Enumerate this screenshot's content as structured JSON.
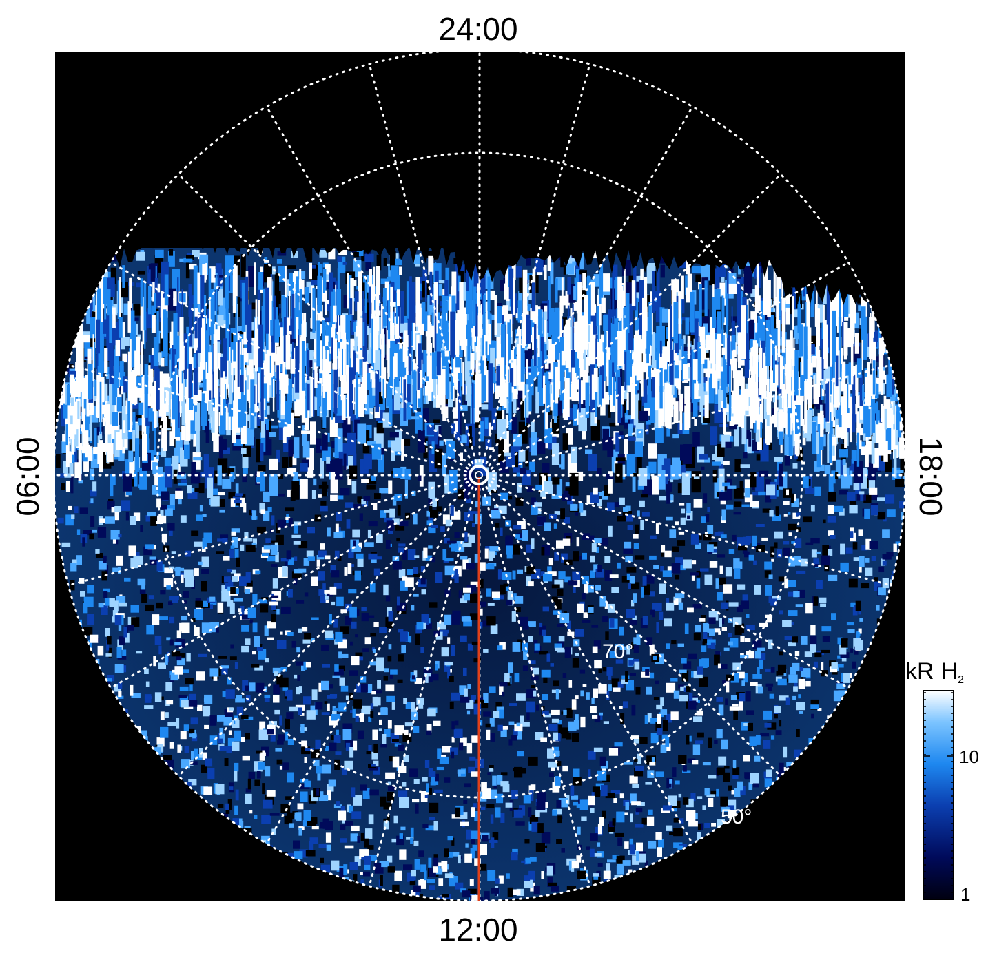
{
  "image": {
    "type": "polar auroral projection",
    "local_time_labels": {
      "top": "24:00",
      "bottom": "12:00",
      "left": "06:00",
      "right": "18:00"
    },
    "latitude_labels": [
      "70°",
      "50°"
    ],
    "colorbar": {
      "title": "kR",
      "species": "H",
      "subscript": "2",
      "tick_labels": [
        "10",
        "1"
      ],
      "scale": "log",
      "colors": [
        "#000010",
        "#000a5a",
        "#0b3fb0",
        "#1e88f0",
        "#7cc4ff",
        "#ffffff"
      ]
    },
    "colors": {
      "background": "#000000",
      "grid": "#ffffff",
      "meridian_line": "#e0401a",
      "emission_bright": "#ffffff",
      "emission_mid": "#1e88f0",
      "emission_dark": "#0a2a80"
    }
  }
}
